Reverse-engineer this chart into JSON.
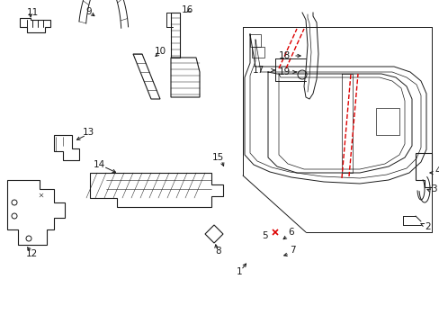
{
  "bg_color": "#ffffff",
  "line_color": "#1a1a1a",
  "red_color": "#dd0000",
  "lw": 0.7,
  "fs": 7.5
}
